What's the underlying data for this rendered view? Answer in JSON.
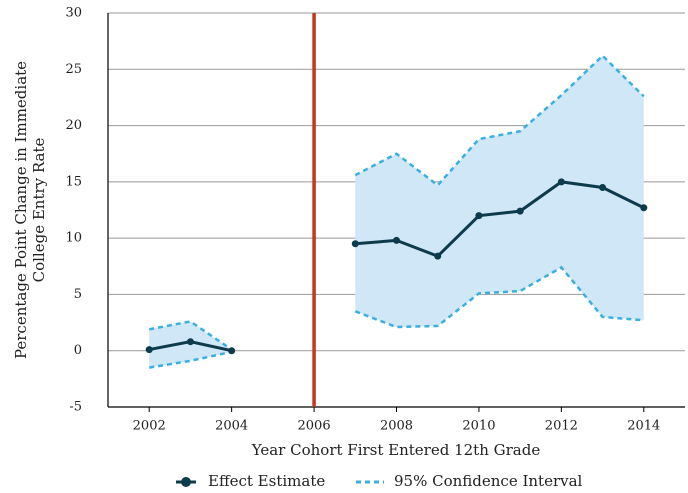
{
  "chart_data": {
    "type": "line",
    "xlabel": "Year Cohort First Entered 12th Grade",
    "ylabel": [
      "Percentage Point Change in Immediate",
      "College Entry Rate"
    ],
    "x": [
      2002,
      2003,
      2004,
      2005,
      2006,
      2007,
      2008,
      2009,
      2010,
      2011,
      2012,
      2013,
      2014
    ],
    "series": [
      {
        "name": "Effect Estimate",
        "color": "#0d3b4c",
        "values": [
          0.1,
          0.8,
          0.0,
          null,
          null,
          9.5,
          9.8,
          8.4,
          12.0,
          12.4,
          15.0,
          14.5,
          12.7
        ]
      },
      {
        "name": "95% Confidence Interval",
        "color": "#3bb0e0",
        "fill": "#cfe7f6",
        "upper": [
          1.9,
          2.6,
          0.1,
          null,
          null,
          15.6,
          17.5,
          14.7,
          18.8,
          19.5,
          22.7,
          26.2,
          22.6
        ],
        "lower": [
          -1.5,
          -0.9,
          -0.1,
          null,
          null,
          3.5,
          2.1,
          2.2,
          5.1,
          5.3,
          7.4,
          3.0,
          2.7
        ]
      }
    ],
    "vline": {
      "x": 2006,
      "color": "#c0391b"
    },
    "xlim": [
      2001,
      2015
    ],
    "ylim": [
      -5,
      30
    ],
    "xticks": [
      2002,
      2004,
      2006,
      2008,
      2010,
      2012,
      2014
    ],
    "yticks": [
      -5,
      0,
      5,
      10,
      15,
      20,
      25,
      30
    ],
    "grid": true,
    "legend": "bottom"
  }
}
